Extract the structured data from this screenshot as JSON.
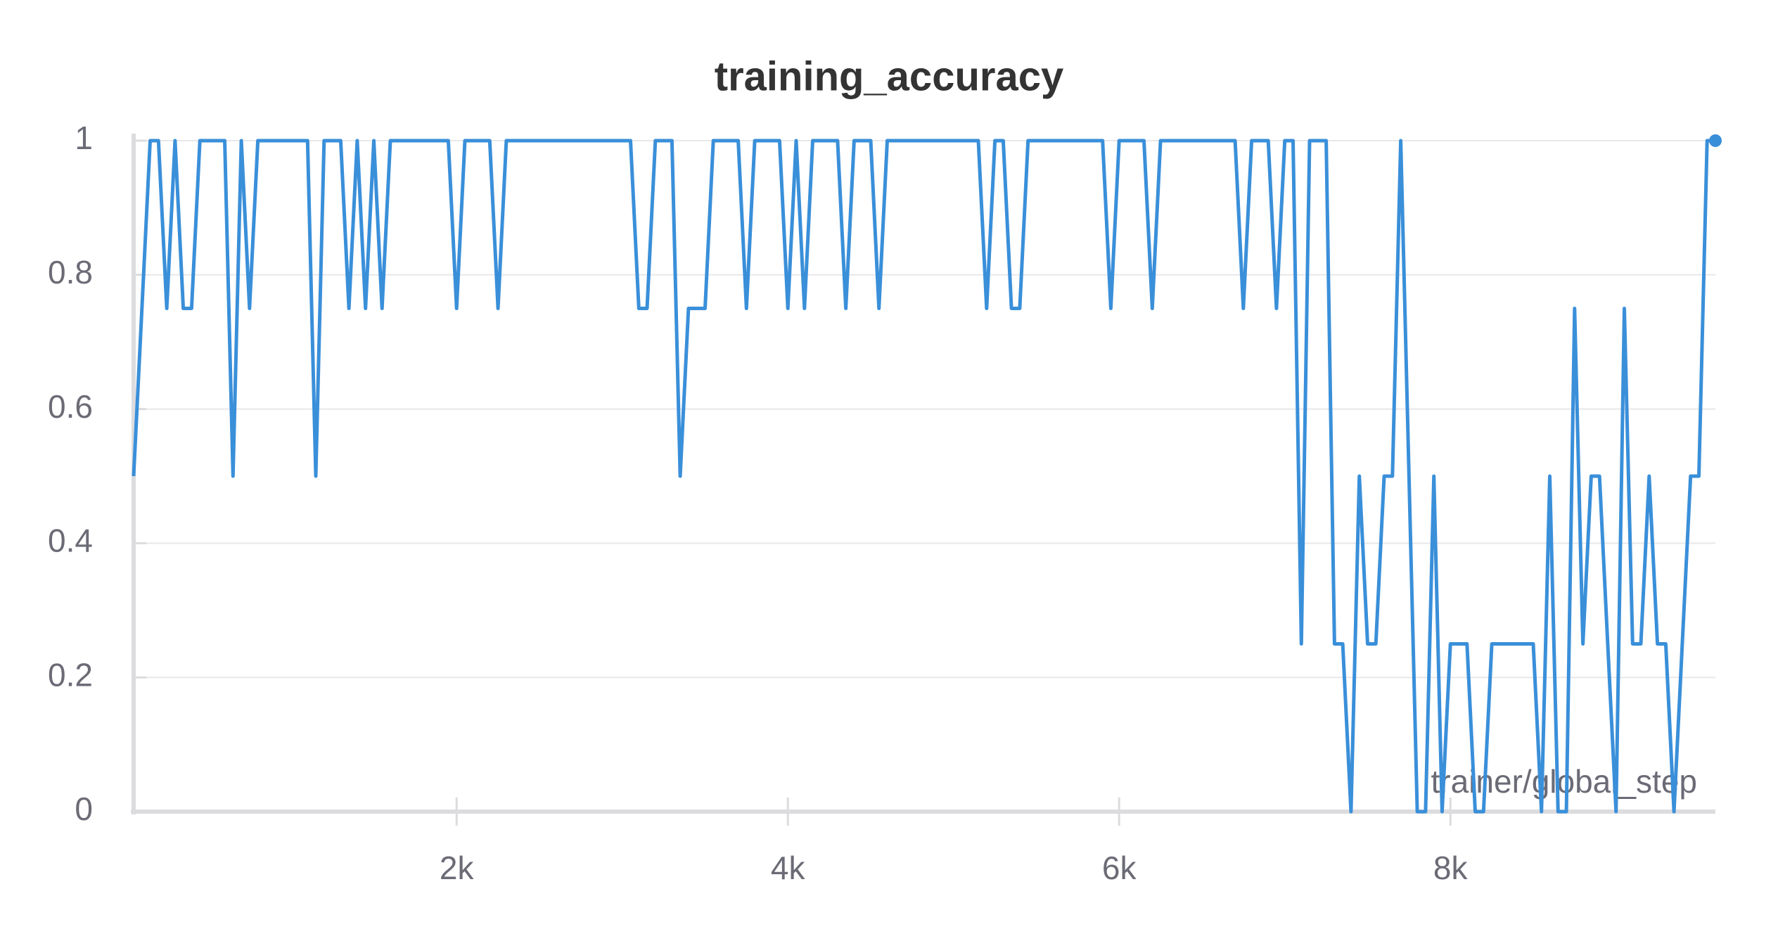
{
  "chart_data": {
    "type": "line",
    "title": "training_accuracy",
    "x_label": "trainer/global_step",
    "color": "#3a8fd9",
    "grid": true,
    "xlim": [
      50,
      9600
    ],
    "ylim": [
      0,
      1
    ],
    "xticks": [
      {
        "value": 2000,
        "label": "2k"
      },
      {
        "value": 4000,
        "label": "4k"
      },
      {
        "value": 6000,
        "label": "6k"
      },
      {
        "value": 8000,
        "label": "8k"
      }
    ],
    "yticks": [
      0,
      0.2,
      0.4,
      0.6,
      0.8,
      1
    ],
    "x": [
      50,
      100,
      150,
      200,
      250,
      300,
      350,
      400,
      450,
      600,
      650,
      700,
      750,
      800,
      1100,
      1150,
      1200,
      1300,
      1350,
      1400,
      1450,
      1500,
      1550,
      1600,
      1950,
      2000,
      2050,
      2200,
      2250,
      2300,
      3050,
      3100,
      3150,
      3200,
      3300,
      3350,
      3400,
      3500,
      3550,
      3700,
      3750,
      3800,
      3950,
      4000,
      4050,
      4100,
      4150,
      4300,
      4350,
      4400,
      4500,
      4550,
      4600,
      5150,
      5200,
      5250,
      5300,
      5350,
      5400,
      5450,
      5900,
      5950,
      6000,
      6150,
      6200,
      6250,
      6700,
      6750,
      6800,
      6900,
      6950,
      7000,
      7050,
      7100,
      7150,
      7250,
      7300,
      7350,
      7400,
      7450,
      7500,
      7550,
      7600,
      7650,
      7700,
      7800,
      7850,
      7900,
      7950,
      8000,
      8100,
      8150,
      8200,
      8250,
      8500,
      8550,
      8600,
      8650,
      8700,
      8750,
      8800,
      8850,
      8900,
      8950,
      9000,
      9050,
      9100,
      9150,
      9200,
      9250,
      9300,
      9350,
      9400,
      9450,
      9500,
      9550,
      9600
    ],
    "values": [
      0.5,
      0.75,
      1,
      1,
      0.75,
      1,
      0.75,
      0.75,
      1,
      1,
      0.5,
      1,
      0.75,
      1,
      1,
      0.5,
      1,
      1,
      0.75,
      1,
      0.75,
      1,
      0.75,
      1,
      1,
      0.75,
      1,
      1,
      0.75,
      1,
      1,
      0.75,
      0.75,
      1,
      1,
      0.5,
      0.75,
      0.75,
      1,
      1,
      0.75,
      1,
      1,
      0.75,
      1,
      0.75,
      1,
      1,
      0.75,
      1,
      1,
      0.75,
      1,
      1,
      0.75,
      1,
      1,
      0.75,
      0.75,
      1,
      1,
      0.75,
      1,
      1,
      0.75,
      1,
      1,
      0.75,
      1,
      1,
      0.75,
      1,
      1,
      0.25,
      1,
      1,
      0.25,
      0.25,
      0,
      0.5,
      0.25,
      0.25,
      0.5,
      0.5,
      1,
      0,
      0,
      0.5,
      0,
      0.25,
      0.25,
      0,
      0,
      0.25,
      0.25,
      0,
      0.5,
      0,
      0,
      0.75,
      0.25,
      0.5,
      0.5,
      0.25,
      0,
      0.75,
      0.25,
      0.25,
      0.5,
      0.25,
      0.25,
      0,
      0.25,
      0.5,
      0.5,
      1,
      1
    ]
  }
}
